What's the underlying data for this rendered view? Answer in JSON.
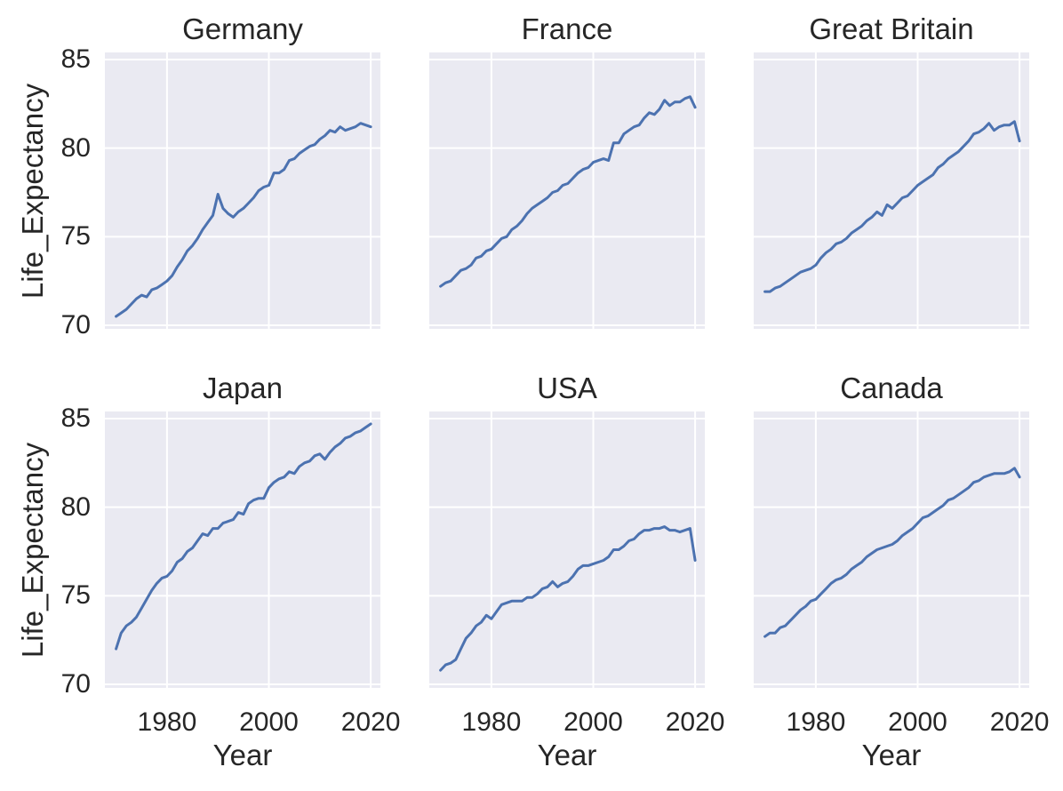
{
  "figure": {
    "ylabel": "Life_Expectancy",
    "xlabel": "Year"
  },
  "colors": {
    "line": "#4C72B0",
    "axes_background": "#EAEAF2",
    "gridline": "#FFFFFF",
    "text": "#262626",
    "figure_background": "#FFFFFF"
  },
  "chart_data": {
    "type": "line",
    "layout": "2x3 subplot grid, shared x and y axes, seaborn darkgrid style, no legend, no markers",
    "x_label": "Year",
    "y_label": "Life_Expectancy",
    "x_ticks": [
      1980,
      2000,
      2020
    ],
    "y_ticks": [
      70,
      75,
      80,
      85
    ],
    "xlim": [
      1967.8,
      2021.9
    ],
    "ylim": [
      69.8,
      85.4
    ],
    "years_start": 1970,
    "years_end": 2020,
    "line_color": "#4C72B0",
    "charts": [
      {
        "title": "Germany",
        "values": [
          70.5,
          70.7,
          70.9,
          71.2,
          71.5,
          71.7,
          71.6,
          72.0,
          72.1,
          72.3,
          72.5,
          72.8,
          73.3,
          73.7,
          74.2,
          74.5,
          74.9,
          75.4,
          75.8,
          76.2,
          77.4,
          76.6,
          76.3,
          76.1,
          76.4,
          76.6,
          76.9,
          77.2,
          77.6,
          77.8,
          77.9,
          78.6,
          78.6,
          78.8,
          79.3,
          79.4,
          79.7,
          79.9,
          80.1,
          80.2,
          80.5,
          80.7,
          81.0,
          80.9,
          81.2,
          81.0,
          81.1,
          81.2,
          81.4,
          81.3,
          81.2
        ]
      },
      {
        "title": "France",
        "values": [
          72.2,
          72.4,
          72.5,
          72.8,
          73.1,
          73.2,
          73.4,
          73.8,
          73.9,
          74.2,
          74.3,
          74.6,
          74.9,
          75.0,
          75.4,
          75.6,
          75.9,
          76.3,
          76.6,
          76.8,
          77.0,
          77.2,
          77.5,
          77.6,
          77.9,
          78.0,
          78.3,
          78.6,
          78.8,
          78.9,
          79.2,
          79.3,
          79.4,
          79.3,
          80.3,
          80.3,
          80.8,
          81.0,
          81.2,
          81.3,
          81.7,
          82.0,
          81.9,
          82.2,
          82.7,
          82.4,
          82.6,
          82.6,
          82.8,
          82.9,
          82.3
        ]
      },
      {
        "title": "Great Britain",
        "values": [
          71.9,
          71.9,
          72.1,
          72.2,
          72.4,
          72.6,
          72.8,
          73.0,
          73.1,
          73.2,
          73.4,
          73.8,
          74.1,
          74.3,
          74.6,
          74.7,
          74.9,
          75.2,
          75.4,
          75.6,
          75.9,
          76.1,
          76.4,
          76.2,
          76.8,
          76.6,
          76.9,
          77.2,
          77.3,
          77.6,
          77.9,
          78.1,
          78.3,
          78.5,
          78.9,
          79.1,
          79.4,
          79.6,
          79.8,
          80.1,
          80.4,
          80.8,
          80.9,
          81.1,
          81.4,
          81.0,
          81.2,
          81.3,
          81.3,
          81.5,
          80.4
        ]
      },
      {
        "title": "Japan",
        "values": [
          72.0,
          72.9,
          73.3,
          73.5,
          73.8,
          74.3,
          74.8,
          75.3,
          75.7,
          76.0,
          76.1,
          76.4,
          76.9,
          77.1,
          77.5,
          77.7,
          78.1,
          78.5,
          78.4,
          78.8,
          78.8,
          79.1,
          79.2,
          79.3,
          79.7,
          79.6,
          80.2,
          80.4,
          80.5,
          80.5,
          81.1,
          81.4,
          81.6,
          81.7,
          82.0,
          81.9,
          82.3,
          82.5,
          82.6,
          82.9,
          83.0,
          82.7,
          83.1,
          83.4,
          83.6,
          83.9,
          84.0,
          84.2,
          84.3,
          84.5,
          84.7
        ]
      },
      {
        "title": "USA",
        "values": [
          70.8,
          71.1,
          71.2,
          71.4,
          72.0,
          72.6,
          72.9,
          73.3,
          73.5,
          73.9,
          73.7,
          74.1,
          74.5,
          74.6,
          74.7,
          74.7,
          74.7,
          74.9,
          74.9,
          75.1,
          75.4,
          75.5,
          75.8,
          75.5,
          75.7,
          75.8,
          76.1,
          76.5,
          76.7,
          76.7,
          76.8,
          76.9,
          77.0,
          77.2,
          77.6,
          77.6,
          77.8,
          78.1,
          78.2,
          78.5,
          78.7,
          78.7,
          78.8,
          78.8,
          78.9,
          78.7,
          78.7,
          78.6,
          78.7,
          78.8,
          77.0
        ]
      },
      {
        "title": "Canada",
        "values": [
          72.7,
          72.9,
          72.9,
          73.2,
          73.3,
          73.6,
          73.9,
          74.2,
          74.4,
          74.7,
          74.8,
          75.1,
          75.4,
          75.7,
          75.9,
          76.0,
          76.2,
          76.5,
          76.7,
          76.9,
          77.2,
          77.4,
          77.6,
          77.7,
          77.8,
          77.9,
          78.1,
          78.4,
          78.6,
          78.8,
          79.1,
          79.4,
          79.5,
          79.7,
          79.9,
          80.1,
          80.4,
          80.5,
          80.7,
          80.9,
          81.1,
          81.4,
          81.5,
          81.7,
          81.8,
          81.9,
          81.9,
          81.9,
          82.0,
          82.2,
          81.7
        ]
      }
    ]
  }
}
